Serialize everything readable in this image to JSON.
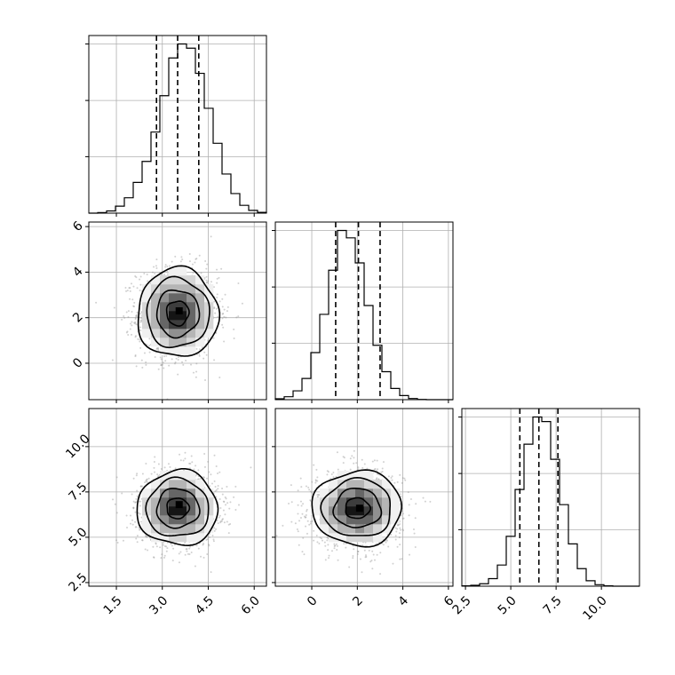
{
  "chart_data": {
    "type": "corner",
    "grid": true,
    "colors": {
      "line": "#000000",
      "grid": "#b0b0b0",
      "points": "#9a9a9a",
      "background": "#ffffff"
    },
    "variables": [
      {
        "range": [
          0.6,
          6.4
        ],
        "ticks": [
          1.5,
          3.0,
          4.5,
          6.0
        ],
        "tick_labels": [
          "1.5",
          "3.0",
          "4.5",
          "6.0"
        ],
        "quantiles": [
          2.81,
          3.5,
          4.19
        ],
        "hist": {
          "edges_start": 0.6,
          "bin_width": 0.29,
          "counts": [
            0,
            2,
            8,
            25,
            55,
            110,
            185,
            290,
            420,
            555,
            605,
            590,
            500,
            375,
            250,
            140,
            70,
            28,
            10,
            3
          ]
        }
      },
      {
        "range": [
          -1.6,
          6.2
        ],
        "ticks": [
          0,
          2,
          4,
          6
        ],
        "tick_labels": [
          "0",
          "2",
          "4",
          "6"
        ],
        "quantiles": [
          1.05,
          2.05,
          3.0
        ],
        "hist": {
          "edges_start": -1.6,
          "bin_width": 0.39,
          "counts": [
            3,
            10,
            30,
            72,
            160,
            290,
            440,
            575,
            550,
            465,
            320,
            185,
            95,
            38,
            14,
            4,
            1,
            0,
            0,
            0
          ]
        }
      },
      {
        "range": [
          2.3,
          12.1
        ],
        "ticks": [
          2.5,
          5.0,
          7.5,
          10.0
        ],
        "tick_labels": [
          "2.5",
          "5.0",
          "7.5",
          "10.0"
        ],
        "quantiles": [
          5.5,
          6.55,
          7.6
        ],
        "hist": {
          "edges_start": 2.3,
          "bin_width": 0.49,
          "counts": [
            1,
            3,
            8,
            25,
            70,
            165,
            320,
            470,
            560,
            545,
            420,
            270,
            140,
            58,
            18,
            5,
            1,
            0,
            0,
            0
          ]
        }
      }
    ],
    "panels": [
      {
        "x_var": 0,
        "y_var": 1,
        "center": [
          3.5,
          2.2
        ],
        "sd": [
          0.66,
          0.98
        ],
        "peak": [
          3.55,
          2.3
        ]
      },
      {
        "x_var": 0,
        "y_var": 2,
        "center": [
          3.5,
          6.6
        ],
        "sd": [
          0.66,
          1.03
        ],
        "peak": [
          3.55,
          6.8
        ]
      },
      {
        "x_var": 1,
        "y_var": 2,
        "center": [
          2.0,
          6.6
        ],
        "sd": [
          0.98,
          1.03
        ],
        "peak": [
          2.1,
          6.6
        ]
      }
    ]
  }
}
